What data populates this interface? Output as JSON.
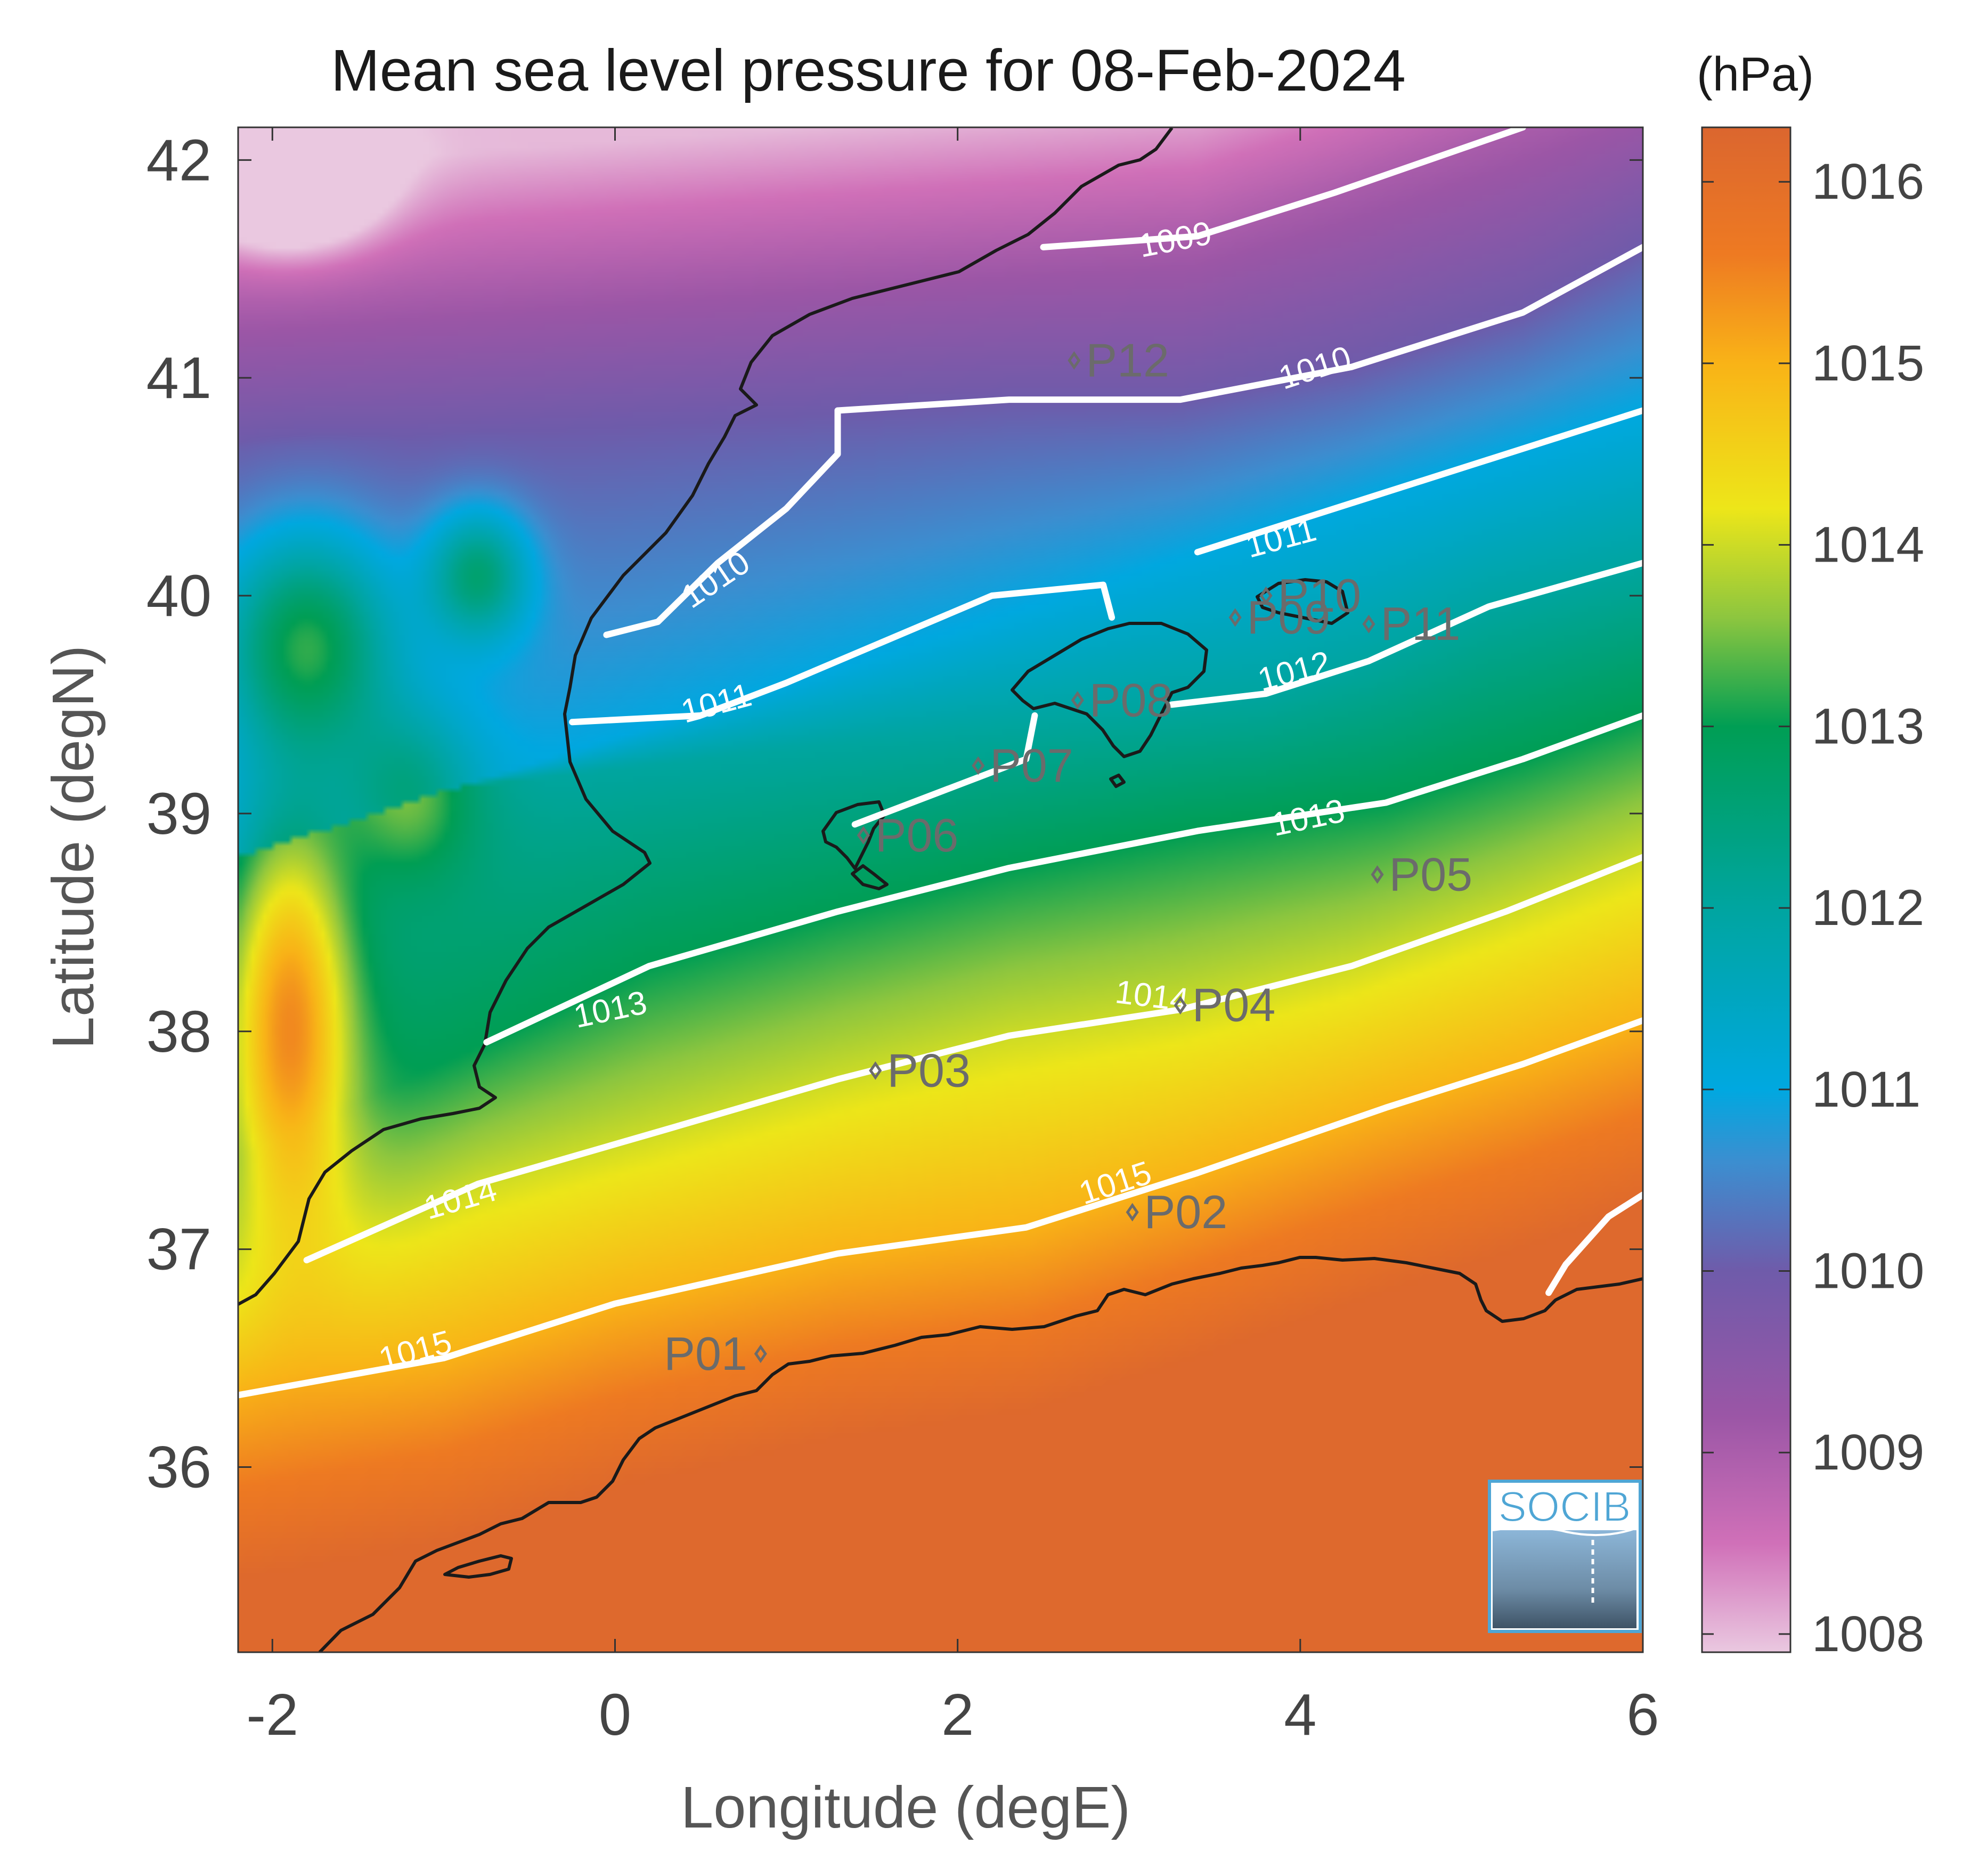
{
  "chart_data": {
    "type": "heatmap",
    "title": "Mean sea level pressure for 08-Feb-2024",
    "xlabel": "Longitude (degE)",
    "ylabel": "Latitude (degN)",
    "xlim": [
      -2.2,
      6.0
    ],
    "ylim": [
      35.15,
      42.15
    ],
    "x_ticks": [
      -2,
      0,
      2,
      4,
      6
    ],
    "x_tick_labels": [
      "-2",
      "0",
      "2",
      "4",
      "6"
    ],
    "y_ticks": [
      36,
      37,
      38,
      39,
      40,
      41,
      42
    ],
    "y_tick_labels": [
      "36",
      "37",
      "38",
      "39",
      "40",
      "41",
      "42"
    ],
    "colorbar": {
      "units_label": "(hPa)",
      "range": [
        1007.9,
        1016.3
      ],
      "ticks": [
        1008,
        1009,
        1010,
        1011,
        1012,
        1013,
        1014,
        1015,
        1016
      ],
      "tick_labels": [
        "1008",
        "1009",
        "1010",
        "1011",
        "1012",
        "1013",
        "1014",
        "1015",
        "1016"
      ],
      "colormap": [
        {
          "value": 1007.9,
          "color": "#EAC8E0"
        },
        {
          "value": 1008.5,
          "color": "#D070B8"
        },
        {
          "value": 1009.2,
          "color": "#9B56A6"
        },
        {
          "value": 1010.0,
          "color": "#6F5BAA"
        },
        {
          "value": 1010.6,
          "color": "#3C8ED0"
        },
        {
          "value": 1011.0,
          "color": "#00A8E0"
        },
        {
          "value": 1012.0,
          "color": "#00A5A0"
        },
        {
          "value": 1013.0,
          "color": "#009E54"
        },
        {
          "value": 1013.6,
          "color": "#8DC63F"
        },
        {
          "value": 1014.2,
          "color": "#EDE619"
        },
        {
          "value": 1015.0,
          "color": "#F9B317"
        },
        {
          "value": 1015.6,
          "color": "#EE7A22"
        },
        {
          "value": 1016.3,
          "color": "#DB662F"
        }
      ]
    },
    "contour_labels": [
      "1009",
      "1010",
      "1010",
      "1011",
      "1011",
      "1012",
      "1013",
      "1013",
      "1014",
      "1014",
      "1015",
      "1015"
    ],
    "contour_lines": [
      {
        "level": 1009,
        "points": [
          [
            2.5,
            41.6
          ],
          [
            3.4,
            41.65
          ],
          [
            4.2,
            41.85
          ],
          [
            5.3,
            42.15
          ]
        ]
      },
      {
        "level": 1010,
        "points": [
          [
            1.3,
            40.85
          ],
          [
            2.3,
            40.9
          ],
          [
            3.3,
            40.9
          ],
          [
            4.3,
            41.05
          ],
          [
            5.3,
            41.3
          ],
          [
            6.0,
            41.6
          ]
        ]
      },
      {
        "level": 1010,
        "points": [
          [
            -0.05,
            39.82
          ],
          [
            0.25,
            39.88
          ],
          [
            0.6,
            40.15
          ],
          [
            1.0,
            40.4
          ],
          [
            1.3,
            40.65
          ],
          [
            1.3,
            40.85
          ]
        ]
      },
      {
        "level": 1011,
        "points": [
          [
            -0.25,
            39.42
          ],
          [
            0.5,
            39.45
          ],
          [
            1.0,
            39.6
          ],
          [
            1.6,
            39.8
          ],
          [
            2.2,
            40.0
          ],
          [
            2.85,
            40.05
          ],
          [
            2.9,
            39.9
          ]
        ]
      },
      {
        "level": 1011,
        "points": [
          [
            3.4,
            40.2
          ],
          [
            4.2,
            40.4
          ],
          [
            5.0,
            40.6
          ],
          [
            6.0,
            40.85
          ]
        ]
      },
      {
        "level": 1011,
        "points": [
          [
            1.4,
            38.95
          ],
          [
            1.9,
            39.1
          ],
          [
            2.4,
            39.25
          ],
          [
            2.45,
            39.45
          ]
        ]
      },
      {
        "level": 1012,
        "points": [
          [
            3.25,
            39.5
          ],
          [
            3.8,
            39.55
          ],
          [
            4.4,
            39.7
          ],
          [
            5.1,
            39.95
          ],
          [
            6.0,
            40.15
          ]
        ]
      },
      {
        "level": 1013,
        "points": [
          [
            -0.75,
            37.95
          ],
          [
            0.2,
            38.3
          ],
          [
            1.3,
            38.55
          ],
          [
            2.3,
            38.75
          ],
          [
            3.4,
            38.92
          ],
          [
            4.5,
            39.05
          ],
          [
            5.3,
            39.25
          ],
          [
            6.0,
            39.45
          ]
        ]
      },
      {
        "level": 1014,
        "points": [
          [
            -1.8,
            36.95
          ],
          [
            -0.8,
            37.3
          ],
          [
            0.3,
            37.55
          ],
          [
            1.3,
            37.78
          ],
          [
            2.3,
            37.98
          ],
          [
            3.3,
            38.1
          ],
          [
            4.3,
            38.3
          ],
          [
            5.2,
            38.55
          ],
          [
            6.0,
            38.8
          ]
        ]
      },
      {
        "level": 1015,
        "points": [
          [
            -2.2,
            36.33
          ],
          [
            -1.0,
            36.5
          ],
          [
            0.0,
            36.75
          ],
          [
            1.3,
            36.98
          ],
          [
            2.4,
            37.1
          ],
          [
            3.4,
            37.35
          ],
          [
            4.5,
            37.65
          ],
          [
            5.3,
            37.85
          ],
          [
            6.0,
            38.05
          ]
        ]
      },
      {
        "level": 1015,
        "points": [
          [
            5.45,
            36.8
          ],
          [
            5.55,
            36.93
          ],
          [
            5.8,
            37.15
          ],
          [
            6.0,
            37.25
          ]
        ]
      }
    ],
    "stations": [
      {
        "name": "P01",
        "lon": 0.85,
        "lat": 36.52
      },
      {
        "name": "P02",
        "lon": 3.02,
        "lat": 37.17
      },
      {
        "name": "P03",
        "lon": 1.52,
        "lat": 37.82
      },
      {
        "name": "P04",
        "lon": 3.3,
        "lat": 38.12
      },
      {
        "name": "P05",
        "lon": 4.45,
        "lat": 38.72
      },
      {
        "name": "P06",
        "lon": 1.45,
        "lat": 38.9
      },
      {
        "name": "P07",
        "lon": 2.12,
        "lat": 39.22
      },
      {
        "name": "P08",
        "lon": 2.7,
        "lat": 39.52
      },
      {
        "name": "P09",
        "lon": 3.62,
        "lat": 39.9
      },
      {
        "name": "P10",
        "lon": 3.8,
        "lat": 40.0
      },
      {
        "name": "P11",
        "lon": 4.4,
        "lat": 39.87
      },
      {
        "name": "P12",
        "lon": 2.68,
        "lat": 41.08
      }
    ]
  },
  "logo": {
    "text": "SOCIB",
    "color": "#4FA6D5"
  }
}
